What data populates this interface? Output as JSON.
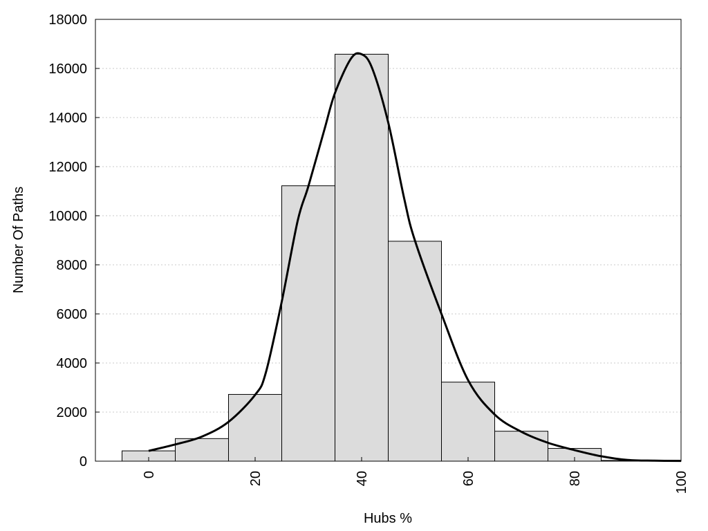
{
  "chart_data": {
    "type": "bar",
    "xlabel": "Hubs %",
    "ylabel": "Number Of Paths",
    "xlim": [
      -10,
      100
    ],
    "ylim": [
      0,
      18000
    ],
    "x_ticks": [
      "0",
      "20",
      "40",
      "60",
      "80",
      "100"
    ],
    "y_ticks": [
      "0",
      "2000",
      "4000",
      "6000",
      "8000",
      "10000",
      "12000",
      "14000",
      "16000",
      "18000"
    ],
    "grid": "horizontal-dotted",
    "bin_width": 10,
    "categories": [
      0,
      10,
      20,
      30,
      40,
      50,
      60,
      70,
      80,
      90
    ],
    "values": [
      420,
      920,
      2720,
      11220,
      16580,
      8960,
      3220,
      1220,
      520,
      30
    ],
    "curve": {
      "type": "line",
      "x": [
        0,
        5,
        10,
        15,
        20,
        22,
        25,
        28,
        30,
        33,
        35,
        38,
        40,
        42,
        45,
        48,
        50,
        55,
        60,
        65,
        70,
        75,
        80,
        85,
        90,
        95,
        100
      ],
      "y": [
        420,
        680,
        1000,
        1600,
        2700,
        3600,
        6500,
        9800,
        11200,
        13500,
        15000,
        16400,
        16580,
        16000,
        13800,
        10700,
        9000,
        6000,
        3300,
        1900,
        1200,
        750,
        450,
        200,
        50,
        20,
        10
      ]
    }
  }
}
